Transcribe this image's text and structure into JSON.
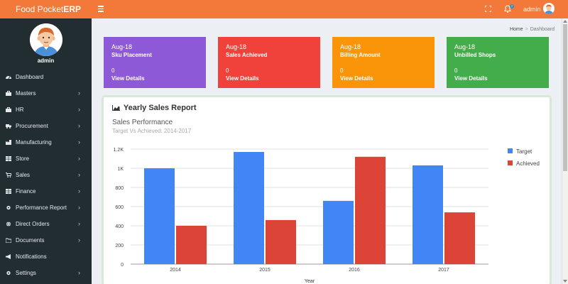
{
  "app": {
    "brand_light": "Food Pocket",
    "brand_bold": "ERP"
  },
  "header": {
    "user_name": "admin",
    "notification_count": "7"
  },
  "sidebar": {
    "user_name": "admin",
    "items": [
      {
        "label": "Dashboard",
        "icon": "dashboard-icon",
        "has_children": false
      },
      {
        "label": "Masters",
        "icon": "briefcase-icon",
        "has_children": true
      },
      {
        "label": "HR",
        "icon": "briefcase-icon",
        "has_children": true
      },
      {
        "label": "Procurement",
        "icon": "truck-icon",
        "has_children": true
      },
      {
        "label": "Manufacturing",
        "icon": "industry-icon",
        "has_children": true
      },
      {
        "label": "Store",
        "icon": "table-icon",
        "has_children": true
      },
      {
        "label": "Sales",
        "icon": "cart-icon",
        "has_children": true
      },
      {
        "label": "Finance",
        "icon": "table-icon",
        "has_children": true
      },
      {
        "label": "Performance Report",
        "icon": "gear-icon",
        "has_children": true
      },
      {
        "label": "Direct Orders",
        "icon": "globe-icon",
        "has_children": true
      },
      {
        "label": "Documents",
        "icon": "folder-icon",
        "has_children": true
      },
      {
        "label": "Notifications",
        "icon": "bullhorn-icon",
        "has_children": false
      },
      {
        "label": "Settings",
        "icon": "gear-icon",
        "has_children": true
      }
    ],
    "chevron": "›"
  },
  "breadcrumb": {
    "home": "Home",
    "sep": ">",
    "current": "Dashboard"
  },
  "stats": [
    {
      "month": "Aug-18",
      "title": "Sku Placement",
      "count": "0",
      "link": "View Details",
      "color": "#8e59d6"
    },
    {
      "month": "Aug-18",
      "title": "Sales Achieved",
      "count": "0",
      "link": "View Details",
      "color": "#f0423a"
    },
    {
      "month": "Aug-18",
      "title": "Billing Amount",
      "count": "0",
      "link": "View Details",
      "color": "#fa9408"
    },
    {
      "month": "Aug-18",
      "title": "Unbilled Shops",
      "count": "0",
      "link": "View Details",
      "color": "#43ad4b"
    }
  ],
  "report": {
    "heading": "Yearly Sales Report",
    "chart_title": "Sales Performance",
    "chart_subtitle": "Target Vs Achieved: 2014-2017"
  },
  "chart_data": {
    "type": "bar",
    "categories": [
      "2014",
      "2015",
      "2016",
      "2017"
    ],
    "series": [
      {
        "name": "Target",
        "values": [
          1000,
          1170,
          660,
          1030
        ],
        "color": "#4285f4"
      },
      {
        "name": "Achieved",
        "values": [
          400,
          460,
          1120,
          540
        ],
        "color": "#db4437"
      }
    ],
    "xlabel": "Year",
    "ylabel": "",
    "ylim": [
      0,
      1200
    ],
    "yticks": [
      {
        "value": 0,
        "label": "0"
      },
      {
        "value": 200,
        "label": "200"
      },
      {
        "value": 400,
        "label": "400"
      },
      {
        "value": 600,
        "label": "600"
      },
      {
        "value": 800,
        "label": "800"
      },
      {
        "value": 1000,
        "label": "1K"
      },
      {
        "value": 1200,
        "label": "1.2K"
      }
    ],
    "grid": true,
    "legend": "right"
  }
}
